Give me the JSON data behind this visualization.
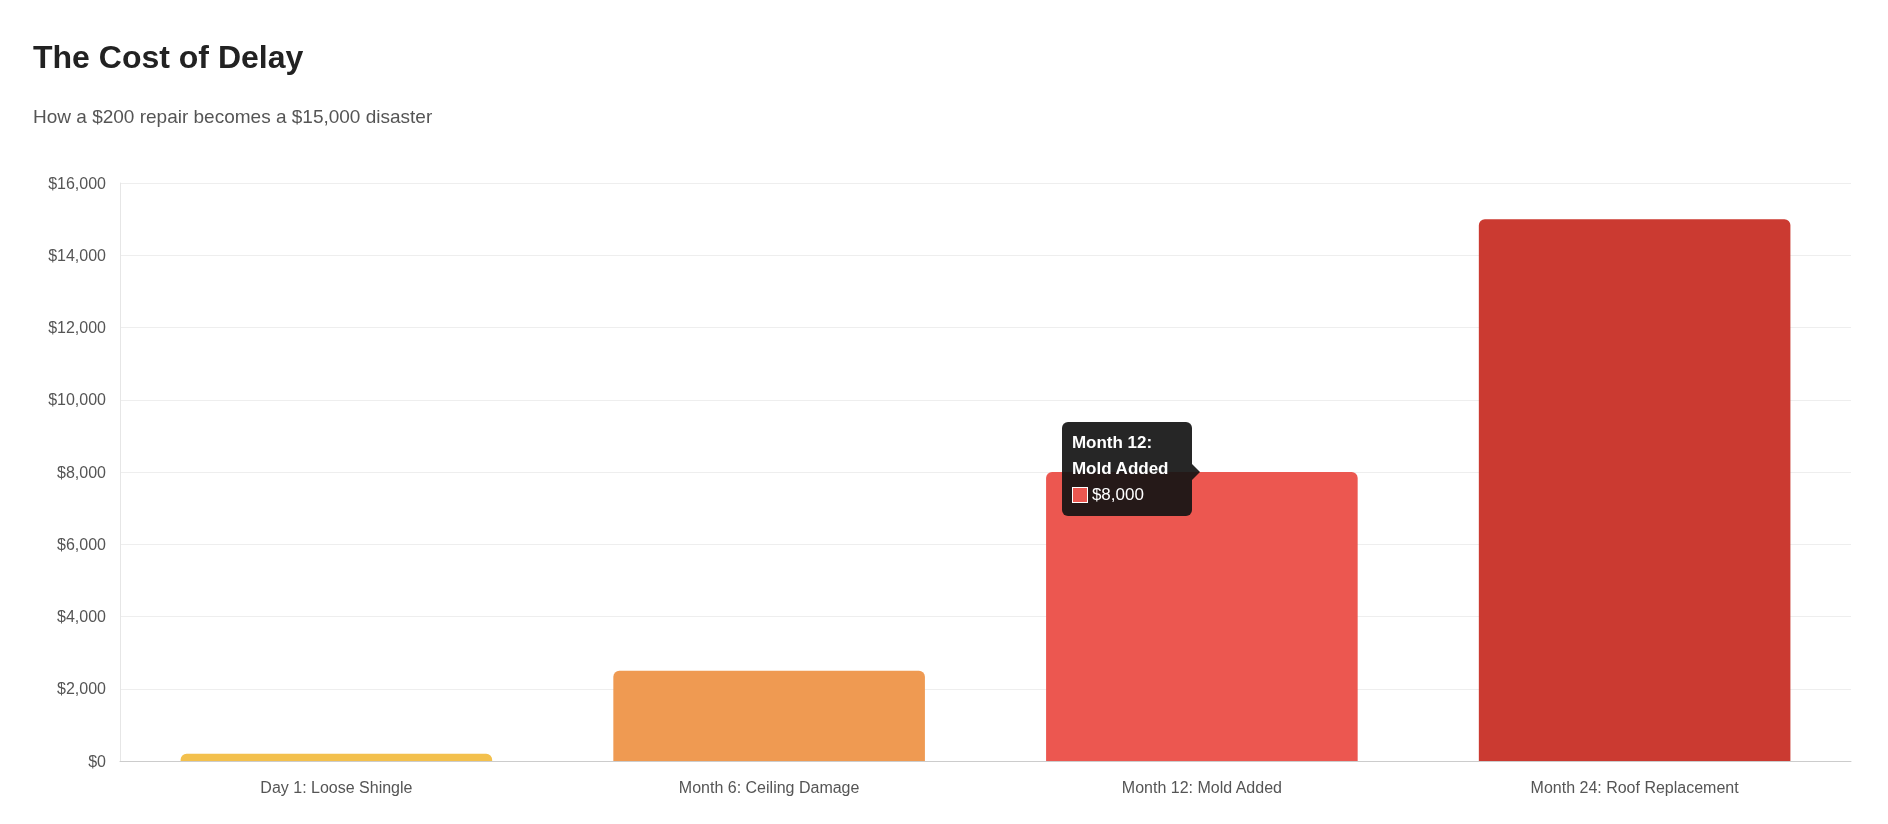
{
  "chart_data": {
    "type": "bar",
    "title": "The Cost of Delay",
    "subtitle": "How a $200 repair becomes a $15,000 disaster",
    "categories": [
      "Day 1: Loose Shingle",
      "Month 6: Ceiling Damage",
      "Month 12: Mold Added",
      "Month 24: Roof Replacement"
    ],
    "values": [
      200,
      2500,
      8000,
      15000
    ],
    "colors": [
      "#f3c04d",
      "#ef9a52",
      "#ec5750",
      "#cb3a31"
    ],
    "ylim": [
      0,
      16000
    ],
    "yticks": [
      {
        "value": 0,
        "label": "$0"
      },
      {
        "value": 2000,
        "label": "$2,000"
      },
      {
        "value": 4000,
        "label": "$4,000"
      },
      {
        "value": 6000,
        "label": "$6,000"
      },
      {
        "value": 8000,
        "label": "$8,000"
      },
      {
        "value": 10000,
        "label": "$10,000"
      },
      {
        "value": 12000,
        "label": "$12,000"
      },
      {
        "value": 14000,
        "label": "$14,000"
      },
      {
        "value": 16000,
        "label": "$16,000"
      }
    ],
    "grid": "y",
    "annotations": [
      {
        "text": "Month 12: Mold Added",
        "x": "Month 12: Mold Added",
        "y": 8000
      },
      "$8,000"
    ]
  }
}
